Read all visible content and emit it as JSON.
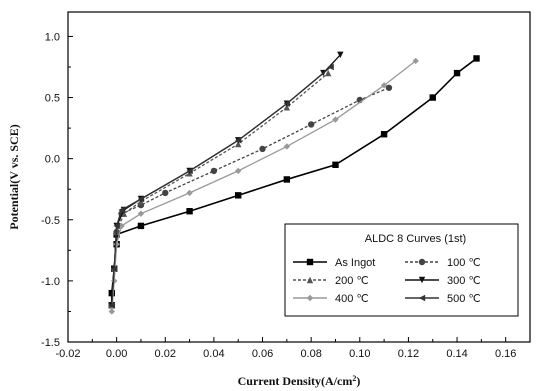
{
  "chart_data": {
    "type": "line",
    "title": "",
    "xlabel": "Current Density(A/cm",
    "xlabel_sup": "2",
    "xlabel_suffix": ")",
    "ylabel": "Potential(V vs. SCE)",
    "xlim": [
      -0.02,
      0.17
    ],
    "ylim": [
      -1.5,
      1.2
    ],
    "xticks": [
      "-0.02",
      "0.00",
      "0.02",
      "0.04",
      "0.06",
      "0.08",
      "0.10",
      "0.12",
      "0.14",
      "0.16"
    ],
    "yticks": [
      "1.0",
      "0.5",
      "0.0",
      "-0.5",
      "-1.0",
      "-1.5"
    ],
    "legend_title": "ALDC 8   Curves (1st)",
    "legend_position": "bottom-right",
    "series": [
      {
        "name": "As Ingot",
        "color": "#000000",
        "marker": "square",
        "x": [
          -0.002,
          -0.002,
          -0.001,
          0.0,
          0.0,
          0.01,
          0.03,
          0.05,
          0.07,
          0.09,
          0.11,
          0.13,
          0.14,
          0.148
        ],
        "y": [
          -1.2,
          -1.1,
          -0.9,
          -0.7,
          -0.62,
          -0.55,
          -0.43,
          -0.3,
          -0.17,
          -0.05,
          0.2,
          0.5,
          0.7,
          0.82
        ]
      },
      {
        "name": "100 ℃",
        "color": "#444444",
        "marker": "circle",
        "x": [
          -0.002,
          -0.001,
          0.0,
          0.002,
          0.01,
          0.02,
          0.04,
          0.06,
          0.08,
          0.1,
          0.112
        ],
        "y": [
          -1.2,
          -0.9,
          -0.6,
          -0.45,
          -0.38,
          -0.28,
          -0.1,
          0.08,
          0.28,
          0.48,
          0.58
        ]
      },
      {
        "name": "200 ℃",
        "color": "#555555",
        "marker": "triangle",
        "x": [
          -0.002,
          -0.001,
          0.0,
          0.003,
          0.01,
          0.03,
          0.05,
          0.07,
          0.087
        ],
        "y": [
          -1.2,
          -0.9,
          -0.6,
          -0.45,
          -0.35,
          -0.12,
          0.12,
          0.42,
          0.7
        ]
      },
      {
        "name": "300 ℃",
        "color": "#111111",
        "marker": "down-triangle",
        "x": [
          -0.002,
          -0.001,
          0.0,
          0.003,
          0.01,
          0.03,
          0.05,
          0.07,
          0.085,
          0.092
        ],
        "y": [
          -1.2,
          -0.9,
          -0.55,
          -0.42,
          -0.33,
          -0.1,
          0.15,
          0.45,
          0.7,
          0.85
        ]
      },
      {
        "name": "400 ℃",
        "color": "#999999",
        "marker": "diamond",
        "x": [
          -0.002,
          -0.001,
          0.0,
          0.002,
          0.01,
          0.03,
          0.05,
          0.07,
          0.09,
          0.11,
          0.123
        ],
        "y": [
          -1.25,
          -1.0,
          -0.7,
          -0.55,
          -0.45,
          -0.28,
          -0.1,
          0.1,
          0.32,
          0.6,
          0.8
        ]
      },
      {
        "name": "500 ℃",
        "color": "#333333",
        "marker": "left-triangle",
        "x": [
          -0.002,
          -0.001,
          0.0,
          0.002,
          0.01,
          0.03,
          0.05,
          0.07,
          0.088
        ],
        "y": [
          -1.2,
          -0.9,
          -0.55,
          -0.42,
          -0.33,
          -0.1,
          0.15,
          0.45,
          0.75
        ]
      }
    ]
  }
}
